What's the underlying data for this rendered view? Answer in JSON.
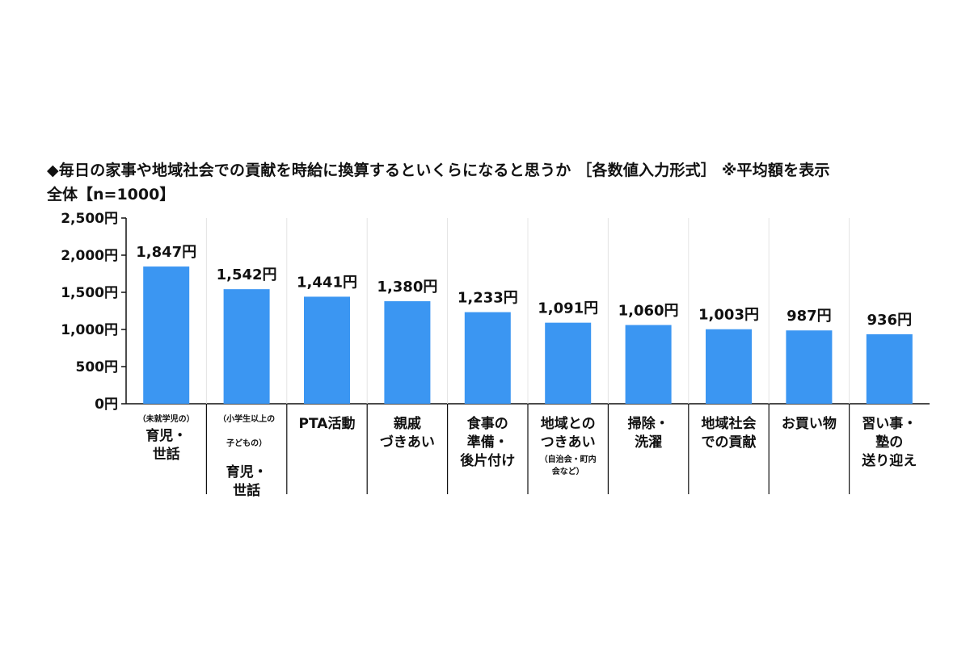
{
  "title": "◆毎日の家事や地域社会での貢献を時給に換算するといくらになると思うか ［各数値入力形式］ ※平均額を表示",
  "subtitle": "全体【n=1000】",
  "chart_data": {
    "type": "bar",
    "title": "◆毎日の家事や地域社会での貢献を時給に換算するといくらになると思うか ［各数値入力形式］ ※平均額を表示",
    "subtitle": "全体【n=1000】",
    "categories": [
      "（未就学児の）育児・世話",
      "（小学生以上の子どもの）育児・世話",
      "PTA活動",
      "親戚づきあい",
      "食事の準備・後片付け",
      "地域とのつきあい（自治会・町内会など）",
      "掃除・洗濯",
      "地域社会での貢献",
      "お買い物",
      "習い事・塾の送り迎え"
    ],
    "category_lines": [
      {
        "note": [
          "（未就学児の）"
        ],
        "main": [
          "育児・",
          "世話"
        ]
      },
      {
        "note": [
          "（小学生以上の",
          "子どもの）"
        ],
        "main": [
          "育児・",
          "世話"
        ]
      },
      {
        "note": [],
        "main": [
          "PTA活動"
        ]
      },
      {
        "note": [],
        "main": [
          "親戚",
          "づきあい"
        ]
      },
      {
        "note": [],
        "main": [
          "食事の",
          "準備・",
          "後片付け"
        ]
      },
      {
        "note": [
          "（自治会・町内",
          "会など）"
        ],
        "main": [
          "地域との",
          "つきあい"
        ]
      },
      {
        "note": [],
        "main": [
          "掃除・",
          "洗濯"
        ]
      },
      {
        "note": [],
        "main": [
          "地域社会",
          "での貢献"
        ]
      },
      {
        "note": [],
        "main": [
          "お買い物"
        ]
      },
      {
        "note": [],
        "main": [
          "習い事・",
          "塾の",
          "送り迎え"
        ]
      }
    ],
    "values": [
      1847,
      1542,
      1441,
      1380,
      1233,
      1091,
      1060,
      1003,
      987,
      936
    ],
    "value_labels": [
      "1,847円",
      "1,542円",
      "1,441円",
      "1,380円",
      "1,233円",
      "1,091円",
      "1,060円",
      "1,003円",
      "987円",
      "936円"
    ],
    "y_ticks": [
      0,
      500,
      1000,
      1500,
      2000,
      2500
    ],
    "y_tick_labels": [
      "0円",
      "500円",
      "1,000円",
      "1,500円",
      "2,000円",
      "2,500円"
    ],
    "ylim": [
      0,
      2500
    ],
    "grid": false,
    "legend": "none",
    "bar_color": "#3b96f2",
    "axis_color": "#111111"
  }
}
